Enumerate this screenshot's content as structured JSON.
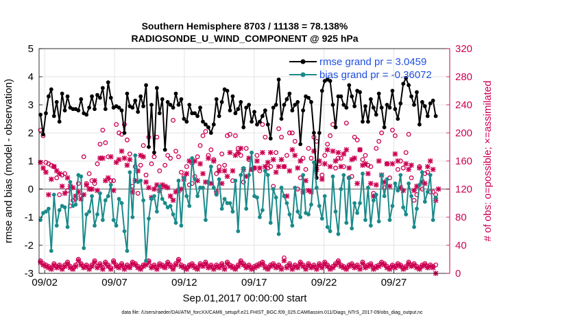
{
  "chart_data": {
    "type": "line",
    "title_line1": "Southern Hemisphere 8703 / 11138 = 78.138%",
    "title_line2": "RADIOSONDE_U_WIND_COMPONENT @ 925 hPa",
    "xlabel": "Sep.01,2017 00:00:00 start",
    "ylabel_left": "rmse and bias (model - observation)",
    "ylabel_right": "# of obs: o=possible; ×=assimilated",
    "x_range_days": [
      1.6,
      31.0
    ],
    "ylim_left": [
      -3,
      5
    ],
    "ylim_right": [
      0,
      320
    ],
    "x_ticks": [
      {
        "day": 2,
        "label": "09/02"
      },
      {
        "day": 7,
        "label": "09/07"
      },
      {
        "day": 12,
        "label": "09/12"
      },
      {
        "day": 17,
        "label": "09/17"
      },
      {
        "day": 22,
        "label": "09/22"
      },
      {
        "day": 27,
        "label": "09/27"
      }
    ],
    "y_ticks_left": [
      "-3",
      "-2",
      "-1",
      "0",
      "1",
      "2",
      "3",
      "4",
      "5"
    ],
    "y_ticks_right": [
      "0",
      "40",
      "80",
      "120",
      "160",
      "200",
      "240",
      "280",
      "320"
    ],
    "zero_line": 0,
    "series": [
      {
        "name": "rmse",
        "legend": "rmse grand pr = 3.0459",
        "color": "#000000",
        "values": [
          2.65,
          1.95,
          2.7,
          3.3,
          3.55,
          2.6,
          3.1,
          2.4,
          3.4,
          2.8,
          3.3,
          2.9,
          2.85,
          2.85,
          2.8,
          3.2,
          2.7,
          2.65,
          2.9,
          3.3,
          2.85,
          3.35,
          3.25,
          3.6,
          2.85,
          3.8,
          3.25,
          2.9,
          2.95,
          2.9,
          2.8,
          2.0,
          3.4,
          2.95,
          2.9,
          3.15,
          2.75,
          3.3,
          2.95,
          3.7,
          1.5,
          3.0,
          1.3,
          3.6,
          2.7,
          3.2,
          1.4,
          3.1,
          3.0,
          2.9,
          3.4,
          3.0,
          3.2,
          2.5,
          2.4,
          3.0,
          2.7,
          2.7,
          2.6,
          2.9,
          2.4,
          2.3,
          2.2,
          2.0,
          2.3,
          3.2,
          2.6,
          3.1,
          3.55,
          3.5,
          2.8,
          3.3,
          2.7,
          2.85,
          3.1,
          2.2,
          2.9,
          3.0,
          2.4,
          2.75,
          2.3,
          2.4,
          2.6,
          2.8,
          2.3,
          1.8,
          2.9,
          3.0,
          3.9,
          2.5,
          3.0,
          3.2,
          3.4,
          2.8,
          3.0,
          3.1,
          1.6,
          2.8,
          3.3,
          3.25,
          3.1,
          2.0,
          0.4,
          2.0,
          3.5,
          3.85,
          3.9,
          3.85,
          3.0,
          2.2,
          3.3,
          3.3,
          3.0,
          2.9,
          3.7,
          3.3,
          2.95,
          3.5,
          3.45,
          2.4,
          2.95,
          2.4,
          3.2,
          2.9,
          2.65,
          3.4,
          2.9,
          2.2,
          3.0,
          2.9,
          3.5,
          2.85,
          2.5,
          3.05,
          3.75,
          3.95,
          3.7,
          3.3,
          3.0,
          3.45,
          2.3,
          3.1,
          2.95,
          2.6,
          3.05,
          3.15,
          2.6
        ]
      },
      {
        "name": "bias",
        "legend": "bias grand pr = -0.36072",
        "color": "#1a8a8a",
        "values": [
          -1.1,
          -0.85,
          -0.8,
          -0.7,
          -2.2,
          -0.2,
          -1.3,
          -0.75,
          -0.6,
          -0.65,
          -1.35,
          0.25,
          -0.6,
          -0.55,
          0.5,
          0.45,
          -2.1,
          -0.9,
          -0.8,
          -0.25,
          -1.3,
          -0.9,
          -0.15,
          -1.1,
          -0.4,
          -0.25,
          0.15,
          -1.1,
          -1.3,
          -0.35,
          -0.5,
          -1.5,
          -2.2,
          0.6,
          -1.0,
          1.2,
          0.25,
          0.3,
          -0.4,
          -2.55,
          -1.05,
          -0.35,
          -0.25,
          -0.8,
          0.1,
          -0.35,
          -0.5,
          -0.65,
          -0.6,
          -0.9,
          -1.2,
          0.3,
          -1.3,
          0.4,
          -0.25,
          -0.6,
          1.1,
          0.35,
          -0.25,
          0.05,
          0.05,
          -1.1,
          0.25,
          0.8,
          0.05,
          -0.2,
          0.35,
          -0.7,
          -0.35,
          -0.5,
          -0.5,
          -0.8,
          0.3,
          -1.5,
          0.5,
          0.75,
          -0.7,
          0.5,
          1.3,
          -0.25,
          -0.3,
          -1.0,
          -0.75,
          0.65,
          0.5,
          -1.2,
          0.0,
          -0.3,
          -1.6,
          0.05,
          -0.25,
          -0.5,
          -0.9,
          -1.3,
          0.05,
          -0.8,
          -1.0,
          0.5,
          -0.85,
          -0.9,
          -0.55,
          0.95,
          0.05,
          -0.6,
          -1.05,
          -0.25,
          -1.35,
          -1.5,
          0.45,
          -0.8,
          -1.6,
          0.0,
          0.5,
          -1.2,
          0.4,
          -1.4,
          -0.5,
          -0.85,
          -0.5,
          0.55,
          -1.1,
          0.05,
          -1.3,
          -0.4,
          -0.2,
          -1.15,
          0.5,
          -0.25,
          0.35,
          -1.1,
          -0.6,
          0.2,
          -0.05,
          0.5,
          -0.65,
          -0.9,
          0.2,
          -0.25,
          -1.35,
          -0.7,
          0.15,
          0.6,
          -0.45,
          -0.1,
          0.5,
          -1.1,
          -0.3
        ]
      },
      {
        "name": "possible",
        "color": "#cc0052",
        "marker": "o",
        "values": [
          204,
          196,
          158,
          156,
          154,
          152,
          136,
          112,
          140,
          142,
          118,
          96,
          104,
          106,
          128,
          110,
          166,
          128,
          142,
          132,
          128,
          156,
          184,
          204,
          186,
          166,
          132,
          132,
          212,
          200,
          198,
          212,
          190,
          170,
          124,
          152,
          114,
          154,
          182,
          140,
          194,
          156,
          166,
          194,
          146,
          124,
          154,
          168,
          164,
          218,
          174,
          166,
          144,
          138,
          152,
          126,
          128,
          138,
          166,
          182,
          196,
          202,
          168,
          176,
          162,
          142,
          152,
          170,
          154,
          196,
          198,
          132,
          196,
          178,
          168,
          130,
          178,
          162,
          148,
          150,
          168,
          146,
          212,
          194,
          150,
          152,
          124,
          172,
          206,
          194,
          152,
          168,
          200,
          200,
          188,
          120,
          136,
          164,
          148,
          178,
          164,
          194,
          188,
          156,
          140,
          168,
          184,
          196,
          212,
          150,
          164,
          164,
          152,
          214,
          136,
          138,
          194,
          190,
          176,
          162,
          168,
          154,
          152,
          114,
          178,
          188,
          200,
          122,
          156,
          136,
          204,
          196,
          148,
          160,
          150,
          172,
          198,
          136,
          104,
          112,
          152,
          120,
          142,
          144,
          116,
          116,
          112
        ]
      },
      {
        "name": "assimilated",
        "color": "#cc0052",
        "marker": "x",
        "values": [
          158,
          150,
          144,
          112,
          134,
          152,
          146,
          142,
          124,
          114,
          136,
          124,
          122,
          110,
          116,
          106,
          112,
          126,
          120,
          120,
          132,
          118,
          164,
          164,
          132,
          136,
          166,
          118,
          158,
          162,
          174,
          164,
          154,
          162,
          116,
          132,
          146,
          168,
          166,
          130,
          122,
          108,
          120,
          126,
          118,
          126,
          124,
          122,
          110,
          104,
          116,
          118,
          120,
          134,
          142,
          160,
          158,
          160,
          132,
          156,
          142,
          130,
          164,
          128,
          160,
          116,
          146,
          128,
          146,
          138,
          172,
          146,
          168,
          172,
          178,
          148,
          138,
          164,
          148,
          150,
          160,
          150,
          172,
          152,
          158,
          172,
          162,
          144,
          152,
          162,
          152,
          110,
          146,
          176,
          168,
          150,
          160,
          116,
          132,
          118,
          116,
          174,
          148,
          160,
          134,
          156,
          176,
          152,
          174,
          160,
          172,
          152,
          170,
          176,
          150,
          162,
          164,
          128,
          176,
          154,
          156,
          142,
          128,
          110,
          126,
          160,
          140,
          130,
          156,
          124,
          156,
          170,
          160,
          122,
          118,
          156,
          148,
          154,
          118,
          124,
          150,
          130,
          128,
          152,
          160,
          148,
          104,
          120
        ]
      },
      {
        "name": "possible_low",
        "color": "#cc0052",
        "marker": "o",
        "values": [
          18,
          14,
          12,
          10,
          8,
          14,
          10,
          12,
          8,
          12,
          16,
          10,
          8,
          12,
          20,
          14,
          10,
          12,
          8,
          12,
          18,
          10,
          14,
          8,
          16,
          12,
          8,
          18,
          12,
          10,
          14,
          8,
          12,
          10,
          16,
          14,
          10,
          8,
          12,
          14,
          18,
          10,
          12,
          8,
          14,
          12,
          10,
          16,
          12,
          8,
          14,
          20,
          12,
          10,
          8,
          12,
          14,
          10,
          8,
          14,
          12,
          16,
          10,
          12,
          8,
          12,
          10,
          14,
          8,
          16,
          12,
          10,
          8,
          12,
          18,
          14,
          10,
          12,
          8,
          10,
          12,
          14,
          16,
          10,
          8,
          12,
          14,
          10,
          12,
          8,
          22,
          10,
          14,
          8,
          12,
          10,
          16,
          12,
          8,
          14,
          10,
          12,
          8,
          14,
          10,
          16,
          12,
          8,
          10,
          14,
          18,
          12,
          10,
          8,
          12,
          14,
          10,
          12,
          8,
          16,
          10,
          12,
          14,
          8,
          10,
          12,
          16,
          14,
          10,
          8,
          12,
          10,
          14,
          12,
          8,
          10,
          16,
          12,
          14,
          10,
          8,
          12,
          14,
          10,
          12,
          10,
          12
        ]
      },
      {
        "name": "assimilated_low",
        "color": "#cc0052",
        "marker": "x",
        "values": [
          16,
          12,
          10,
          8,
          6,
          12,
          8,
          10,
          6,
          10,
          14,
          8,
          6,
          10,
          18,
          12,
          8,
          10,
          6,
          10,
          16,
          8,
          12,
          6,
          14,
          10,
          6,
          16,
          10,
          8,
          12,
          6,
          10,
          8,
          14,
          12,
          8,
          6,
          10,
          12,
          16,
          8,
          10,
          6,
          12,
          10,
          8,
          14,
          10,
          6,
          12,
          18,
          10,
          8,
          6,
          10,
          12,
          8,
          6,
          12,
          10,
          14,
          8,
          10,
          6,
          10,
          8,
          12,
          6,
          14,
          10,
          8,
          6,
          10,
          16,
          12,
          8,
          10,
          6,
          8,
          10,
          12,
          14,
          8,
          6,
          10,
          12,
          8,
          10,
          6,
          18,
          8,
          12,
          6,
          10,
          8,
          14,
          10,
          6,
          12,
          8,
          10,
          6,
          12,
          8,
          14,
          10,
          6,
          8,
          12,
          16,
          10,
          8,
          6,
          10,
          12,
          8,
          10,
          6,
          14,
          8,
          10,
          12,
          6,
          8,
          10,
          14,
          12,
          8,
          6,
          10,
          8,
          12,
          10,
          6,
          8,
          14,
          10,
          12,
          8,
          6,
          10,
          12,
          8,
          10,
          8,
          0
        ]
      }
    ],
    "footer": "data file: /Users/raeder/DAI/ATM_forcXX/CAM6_setup/f.e21.FHIST_BGC.f09_025.CAM6assim.011/Diags_NTrS_2017-09/obs_diag_output.nc"
  }
}
